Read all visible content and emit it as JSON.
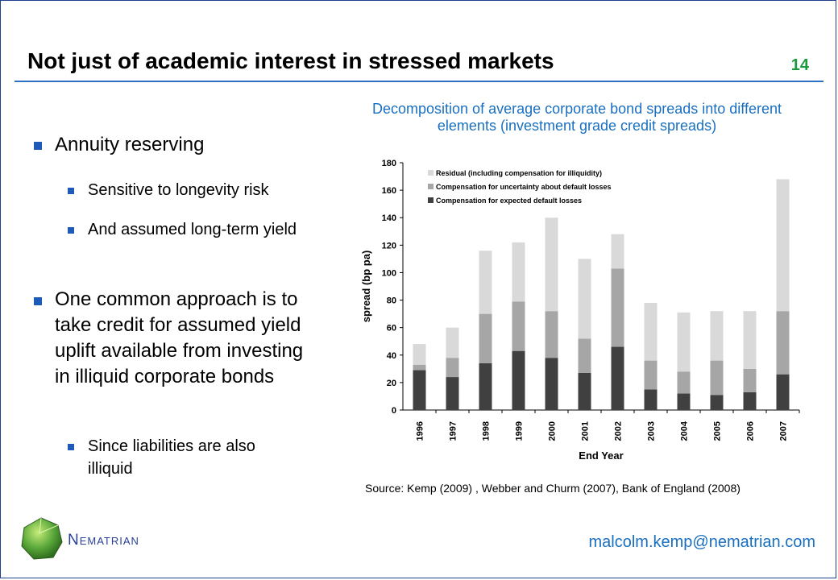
{
  "slide": {
    "title": "Not just of academic interest in stressed markets",
    "page_number": "14",
    "footer_brand": "Nematrian",
    "footer_email": "malcolm.kemp@nematrian.com",
    "accent_color": "#1e5bb8",
    "title_rule_color": "#2d6fc2",
    "page_number_color": "#1a9a3c"
  },
  "bullets": [
    {
      "level": 1,
      "text": "Annuity reserving"
    },
    {
      "level": 2,
      "text": "Sensitive to longevity risk"
    },
    {
      "level": 2,
      "text": "And assumed long-term yield"
    },
    {
      "level": 1,
      "text": "One common approach is to take credit for assumed yield uplift available from investing in illiquid corporate bonds"
    },
    {
      "level": 2,
      "text": "Since liabilities are also illiquid"
    }
  ],
  "chart_caption": "Decomposition of average corporate bond spreads into different elements (investment grade credit spreads)",
  "source_text": "Source: Kemp (2009) , Webber and Churm (2007), Bank of England (2008)",
  "chart_data": {
    "type": "bar",
    "stacked": true,
    "title": "",
    "xlabel": "End Year",
    "ylabel": "spread (bp pa)",
    "ylim": [
      0,
      180
    ],
    "yticks": [
      0,
      20,
      40,
      60,
      80,
      100,
      120,
      140,
      160,
      180
    ],
    "grid": false,
    "legend_position": "top-left",
    "categories": [
      "1996",
      "1997",
      "1998",
      "1999",
      "2000",
      "2001",
      "2002",
      "2003",
      "2004",
      "2005",
      "2006",
      "2007"
    ],
    "series": [
      {
        "name": "Compensation for expected default losses",
        "color": "#404040",
        "values": [
          29,
          24,
          34,
          43,
          38,
          27,
          46,
          15,
          12,
          11,
          13,
          26
        ]
      },
      {
        "name": "Compensation for uncertainty about default losses",
        "color": "#a6a6a6",
        "values": [
          4,
          14,
          36,
          36,
          34,
          25,
          57,
          21,
          16,
          25,
          17,
          46
        ]
      },
      {
        "name": "Residual (including compensation for illiquidity)",
        "color": "#d9d9d9",
        "values": [
          15,
          22,
          46,
          43,
          68,
          58,
          25,
          42,
          43,
          36,
          42,
          96
        ]
      }
    ]
  }
}
